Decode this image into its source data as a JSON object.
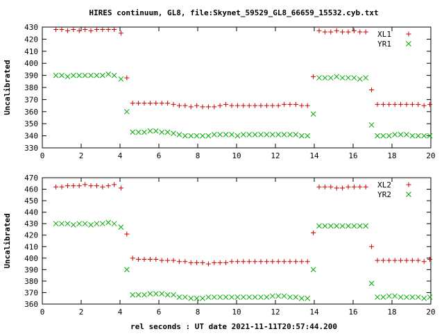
{
  "title": "HIRES continuum, GL8, file:Skynet_59529_GL8_66659_15532.cyb.txt",
  "xlabel": "rel seconds : UT date 2021-11-11T20:57:44.200",
  "chart_data": [
    {
      "type": "scatter",
      "ylabel": "Uncalibrated",
      "xlim": [
        0,
        20
      ],
      "ylim": [
        330,
        430
      ],
      "xticks": [
        0,
        2,
        4,
        6,
        8,
        10,
        12,
        14,
        16,
        18,
        20
      ],
      "yticks": [
        330,
        340,
        350,
        360,
        370,
        380,
        390,
        400,
        410,
        420,
        430
      ],
      "grid": false,
      "legend_position": "top-right",
      "series": [
        {
          "name": "XL1",
          "marker": "plus",
          "color": "#cc0000",
          "points": [
            [
              0.7,
              428
            ],
            [
              1.0,
              428
            ],
            [
              1.3,
              427
            ],
            [
              1.6,
              428
            ],
            [
              1.9,
              427
            ],
            [
              2.2,
              428
            ],
            [
              2.5,
              427
            ],
            [
              2.8,
              428
            ],
            [
              3.1,
              428
            ],
            [
              3.4,
              428
            ],
            [
              3.7,
              428
            ],
            [
              4.05,
              425
            ],
            [
              4.35,
              388
            ],
            [
              4.65,
              367
            ],
            [
              4.95,
              367
            ],
            [
              5.25,
              367
            ],
            [
              5.55,
              367
            ],
            [
              5.85,
              367
            ],
            [
              6.15,
              367
            ],
            [
              6.45,
              367
            ],
            [
              6.75,
              366
            ],
            [
              7.05,
              365
            ],
            [
              7.35,
              365
            ],
            [
              7.65,
              364
            ],
            [
              7.95,
              365
            ],
            [
              8.25,
              364
            ],
            [
              8.55,
              364
            ],
            [
              8.85,
              364
            ],
            [
              9.15,
              365
            ],
            [
              9.45,
              366
            ],
            [
              9.75,
              365
            ],
            [
              10.05,
              365
            ],
            [
              10.35,
              365
            ],
            [
              10.65,
              365
            ],
            [
              10.95,
              365
            ],
            [
              11.25,
              365
            ],
            [
              11.55,
              365
            ],
            [
              11.85,
              365
            ],
            [
              12.15,
              365
            ],
            [
              12.45,
              366
            ],
            [
              12.75,
              366
            ],
            [
              13.05,
              366
            ],
            [
              13.35,
              365
            ],
            [
              13.65,
              365
            ],
            [
              13.95,
              389
            ],
            [
              14.25,
              427
            ],
            [
              14.55,
              426
            ],
            [
              14.85,
              426
            ],
            [
              15.15,
              427
            ],
            [
              15.45,
              426
            ],
            [
              15.75,
              426
            ],
            [
              16.05,
              427
            ],
            [
              16.35,
              426
            ],
            [
              16.65,
              426
            ],
            [
              16.95,
              378
            ],
            [
              17.25,
              366
            ],
            [
              17.55,
              366
            ],
            [
              17.85,
              366
            ],
            [
              18.15,
              366
            ],
            [
              18.45,
              366
            ],
            [
              18.75,
              366
            ],
            [
              19.05,
              366
            ],
            [
              19.35,
              366
            ],
            [
              19.65,
              365
            ],
            [
              19.95,
              366
            ]
          ]
        },
        {
          "name": "YR1",
          "marker": "cross",
          "color": "#00aa00",
          "points": [
            [
              0.7,
              390
            ],
            [
              1.0,
              390
            ],
            [
              1.3,
              389
            ],
            [
              1.6,
              390
            ],
            [
              1.9,
              390
            ],
            [
              2.2,
              390
            ],
            [
              2.5,
              390
            ],
            [
              2.8,
              390
            ],
            [
              3.1,
              390
            ],
            [
              3.4,
              391
            ],
            [
              3.7,
              390
            ],
            [
              4.05,
              387
            ],
            [
              4.35,
              360
            ],
            [
              4.65,
              343
            ],
            [
              4.95,
              343
            ],
            [
              5.25,
              343
            ],
            [
              5.55,
              344
            ],
            [
              5.85,
              344
            ],
            [
              6.15,
              343
            ],
            [
              6.45,
              343
            ],
            [
              6.75,
              342
            ],
            [
              7.05,
              341
            ],
            [
              7.35,
              340
            ],
            [
              7.65,
              340
            ],
            [
              7.95,
              340
            ],
            [
              8.25,
              340
            ],
            [
              8.55,
              340
            ],
            [
              8.85,
              341
            ],
            [
              9.15,
              341
            ],
            [
              9.45,
              341
            ],
            [
              9.75,
              341
            ],
            [
              10.05,
              340
            ],
            [
              10.35,
              341
            ],
            [
              10.65,
              341
            ],
            [
              10.95,
              341
            ],
            [
              11.25,
              341
            ],
            [
              11.55,
              341
            ],
            [
              11.85,
              341
            ],
            [
              12.15,
              341
            ],
            [
              12.45,
              341
            ],
            [
              12.75,
              341
            ],
            [
              13.05,
              341
            ],
            [
              13.35,
              340
            ],
            [
              13.65,
              340
            ],
            [
              13.95,
              358
            ],
            [
              14.25,
              388
            ],
            [
              14.55,
              388
            ],
            [
              14.85,
              388
            ],
            [
              15.15,
              389
            ],
            [
              15.45,
              388
            ],
            [
              15.75,
              388
            ],
            [
              16.05,
              388
            ],
            [
              16.35,
              387
            ],
            [
              16.65,
              388
            ],
            [
              16.95,
              349
            ],
            [
              17.25,
              340
            ],
            [
              17.55,
              340
            ],
            [
              17.85,
              340
            ],
            [
              18.15,
              341
            ],
            [
              18.45,
              341
            ],
            [
              18.75,
              341
            ],
            [
              19.05,
              340
            ],
            [
              19.35,
              340
            ],
            [
              19.65,
              340
            ],
            [
              19.95,
              340
            ]
          ]
        }
      ]
    },
    {
      "type": "scatter",
      "ylabel": "Uncalibrated",
      "xlim": [
        0,
        20
      ],
      "ylim": [
        360,
        470
      ],
      "xticks": [
        0,
        2,
        4,
        6,
        8,
        10,
        12,
        14,
        16,
        18,
        20
      ],
      "yticks": [
        360,
        370,
        380,
        390,
        400,
        410,
        420,
        430,
        440,
        450,
        460,
        470
      ],
      "grid": false,
      "legend_position": "top-right",
      "series": [
        {
          "name": "XL2",
          "marker": "plus",
          "color": "#cc0000",
          "points": [
            [
              0.7,
              462
            ],
            [
              1.0,
              462
            ],
            [
              1.3,
              463
            ],
            [
              1.6,
              463
            ],
            [
              1.9,
              463
            ],
            [
              2.2,
              464
            ],
            [
              2.5,
              463
            ],
            [
              2.8,
              463
            ],
            [
              3.1,
              462
            ],
            [
              3.4,
              463
            ],
            [
              3.7,
              464
            ],
            [
              4.05,
              461
            ],
            [
              4.35,
              421
            ],
            [
              4.65,
              400
            ],
            [
              4.95,
              399
            ],
            [
              5.25,
              399
            ],
            [
              5.55,
              399
            ],
            [
              5.85,
              399
            ],
            [
              6.15,
              398
            ],
            [
              6.45,
              398
            ],
            [
              6.75,
              398
            ],
            [
              7.05,
              397
            ],
            [
              7.35,
              397
            ],
            [
              7.65,
              396
            ],
            [
              7.95,
              396
            ],
            [
              8.25,
              396
            ],
            [
              8.55,
              395
            ],
            [
              8.85,
              396
            ],
            [
              9.15,
              396
            ],
            [
              9.45,
              396
            ],
            [
              9.75,
              397
            ],
            [
              10.05,
              397
            ],
            [
              10.35,
              397
            ],
            [
              10.65,
              397
            ],
            [
              10.95,
              397
            ],
            [
              11.25,
              397
            ],
            [
              11.55,
              397
            ],
            [
              11.85,
              397
            ],
            [
              12.15,
              397
            ],
            [
              12.45,
              397
            ],
            [
              12.75,
              397
            ],
            [
              13.05,
              397
            ],
            [
              13.35,
              397
            ],
            [
              13.65,
              397
            ],
            [
              13.95,
              422
            ],
            [
              14.25,
              462
            ],
            [
              14.55,
              462
            ],
            [
              14.85,
              462
            ],
            [
              15.15,
              461
            ],
            [
              15.45,
              461
            ],
            [
              15.75,
              462
            ],
            [
              16.05,
              462
            ],
            [
              16.35,
              462
            ],
            [
              16.65,
              462
            ],
            [
              16.95,
              410
            ],
            [
              17.25,
              398
            ],
            [
              17.55,
              398
            ],
            [
              17.85,
              398
            ],
            [
              18.15,
              398
            ],
            [
              18.45,
              398
            ],
            [
              18.75,
              398
            ],
            [
              19.05,
              398
            ],
            [
              19.35,
              398
            ],
            [
              19.65,
              397
            ],
            [
              19.95,
              399
            ]
          ]
        },
        {
          "name": "YR2",
          "marker": "cross",
          "color": "#00aa00",
          "points": [
            [
              0.7,
              430
            ],
            [
              1.0,
              430
            ],
            [
              1.3,
              430
            ],
            [
              1.6,
              429
            ],
            [
              1.9,
              430
            ],
            [
              2.2,
              430
            ],
            [
              2.5,
              429
            ],
            [
              2.8,
              430
            ],
            [
              3.1,
              430
            ],
            [
              3.4,
              431
            ],
            [
              3.7,
              430
            ],
            [
              4.05,
              427
            ],
            [
              4.35,
              390
            ],
            [
              4.65,
              368
            ],
            [
              4.95,
              368
            ],
            [
              5.25,
              368
            ],
            [
              5.55,
              369
            ],
            [
              5.85,
              369
            ],
            [
              6.15,
              369
            ],
            [
              6.45,
              368
            ],
            [
              6.75,
              368
            ],
            [
              7.05,
              366
            ],
            [
              7.35,
              366
            ],
            [
              7.65,
              365
            ],
            [
              7.95,
              365
            ],
            [
              8.25,
              365
            ],
            [
              8.55,
              366
            ],
            [
              8.85,
              366
            ],
            [
              9.15,
              366
            ],
            [
              9.45,
              366
            ],
            [
              9.75,
              366
            ],
            [
              10.05,
              366
            ],
            [
              10.35,
              366
            ],
            [
              10.65,
              366
            ],
            [
              10.95,
              366
            ],
            [
              11.25,
              366
            ],
            [
              11.55,
              366
            ],
            [
              11.85,
              367
            ],
            [
              12.15,
              367
            ],
            [
              12.45,
              367
            ],
            [
              12.75,
              366
            ],
            [
              13.05,
              366
            ],
            [
              13.35,
              365
            ],
            [
              13.65,
              365
            ],
            [
              13.95,
              390
            ],
            [
              14.25,
              428
            ],
            [
              14.55,
              428
            ],
            [
              14.85,
              428
            ],
            [
              15.15,
              428
            ],
            [
              15.45,
              428
            ],
            [
              15.75,
              428
            ],
            [
              16.05,
              428
            ],
            [
              16.35,
              428
            ],
            [
              16.65,
              428
            ],
            [
              16.95,
              378
            ],
            [
              17.25,
              366
            ],
            [
              17.55,
              366
            ],
            [
              17.85,
              367
            ],
            [
              18.15,
              367
            ],
            [
              18.45,
              366
            ],
            [
              18.75,
              366
            ],
            [
              19.05,
              366
            ],
            [
              19.35,
              366
            ],
            [
              19.65,
              365
            ],
            [
              19.95,
              366
            ]
          ]
        }
      ]
    }
  ]
}
